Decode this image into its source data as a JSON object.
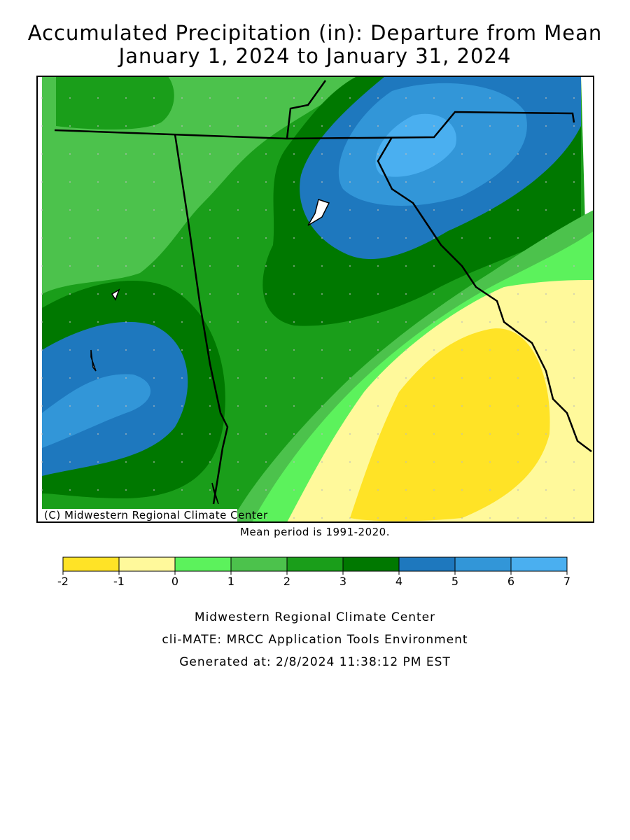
{
  "title": [
    "Accumulated Precipitation (in): Departure from Mean",
    "January 1, 2024 to January 31, 2024"
  ],
  "map": {
    "credit": "(C) Midwestern Regional Climate Center"
  },
  "caption": "Mean period is 1991-2020.",
  "legend": {
    "colors": [
      "#ffe326",
      "#fff99b",
      "#5cf25c",
      "#4cc24c",
      "#1a9e1a",
      "#007800",
      "#1e78be",
      "#3296d8",
      "#4aaff0"
    ],
    "ticks": [
      -2,
      -1,
      0,
      1,
      2,
      3,
      4,
      5,
      6,
      7
    ]
  },
  "footer": [
    "Midwestern Regional Climate Center",
    "cli-MATE: MRCC Application Tools Environment",
    "Generated at: 2/8/2024 11:38:12 PM EST"
  ]
}
